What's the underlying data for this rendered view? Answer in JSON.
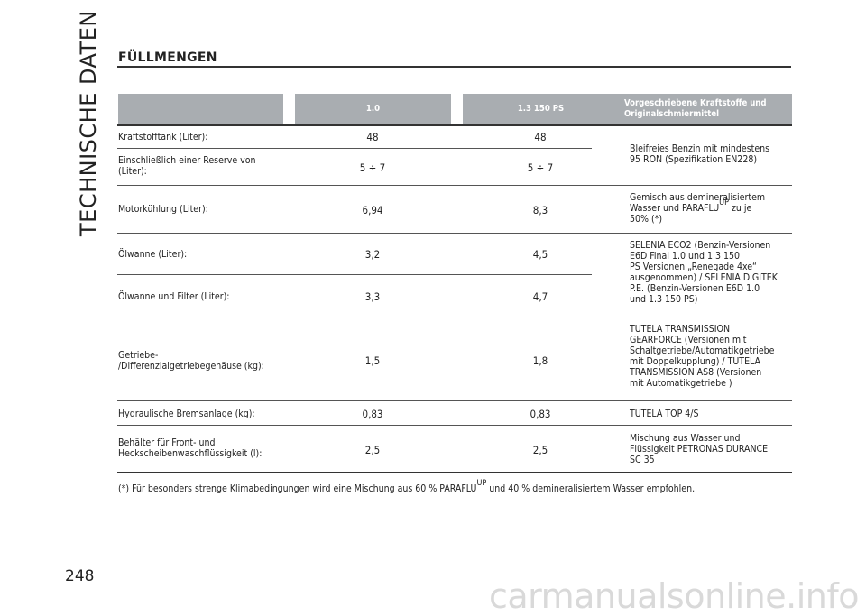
{
  "side_title": "TECHNISCHE DATEN",
  "page_number": "248",
  "heading": "FÜLLMENGEN",
  "table": {
    "header": {
      "col1": "",
      "col2": "1.0",
      "col3": "1.3 150 PS",
      "col4_line1": "Vorgeschriebene Kraftstoffe und",
      "col4_line2": "Originalschmiermittel"
    },
    "rows": [
      {
        "label_line1": "Kraftstofftank (Liter):",
        "label_line2": "",
        "v1": "48",
        "v2": "48"
      },
      {
        "label_line1": "Einschließlich einer Reserve von",
        "label_line2": "(Liter):",
        "v1": "5 ÷ 7",
        "v2": "5 ÷ 7"
      },
      {
        "label_line1": "Motorkühlung (Liter):",
        "label_line2": "",
        "v1": "6,94",
        "v2": "8,3"
      },
      {
        "label_line1": "Ölwanne (Liter):",
        "label_line2": "",
        "v1": "3,2",
        "v2": "4,5"
      },
      {
        "label_line1": "Ölwanne und Filter (Liter):",
        "label_line2": "",
        "v1": "3,3",
        "v2": "4,7"
      },
      {
        "label_line1": "Getriebe-",
        "label_line2": "/Differenzialgetriebegehäuse (kg):",
        "v1": "1,5",
        "v2": "1,8"
      },
      {
        "label_line1": "Hydraulische Bremsanlage (kg):",
        "label_line2": "",
        "v1": "0,83",
        "v2": "0,83"
      },
      {
        "label_line1": "Behälter für Front- und",
        "label_line2": "Heckscheibenwaschflüssigkeit (l):",
        "v1": "2,5",
        "v2": "2,5"
      }
    ],
    "specs": {
      "fuel": [
        "Bleifreies Benzin mit mindestens",
        "95 RON (Spezifikation EN228)"
      ],
      "coolant_line1": "Gemisch aus demineralisiertem",
      "coolant_line2_a": "Wasser und PARAFLU",
      "coolant_sup": "UP",
      "coolant_line2_b": "zu je",
      "coolant_line3": "50% (*)",
      "oil": [
        "SELENIA ECO2 (Benzin-Versionen",
        "E6D Final 1.0 und 1.3 150",
        "PS Versionen „Renegade 4xe“",
        "ausgenommen) / SELENIA DIGITEK",
        "P.E. (Benzin-Versionen E6D 1.0",
        "und 1.3 150 PS)"
      ],
      "transmission": [
        "TUTELA TRANSMISSION",
        "GEARFORCE (Versionen mit",
        "Schaltgetriebe/Automatikgetriebe",
        "mit Doppelkupplung) / TUTELA",
        "TRANSMISSION AS8 (Versionen",
        "mit Automatikgetriebe )"
      ],
      "brake": "TUTELA TOP 4/S",
      "washer": [
        "Mischung aus Wasser und",
        "Flüssigkeit PETRONAS DURANCE",
        "SC 35"
      ]
    }
  },
  "footnote": {
    "a": "(*) Für besonders strenge Klimabedingungen wird eine Mischung aus 60 % PARAFLU",
    "sup": "UP",
    "b": "und 40 % demineralisiertem Wasser empfohlen."
  },
  "watermark": "carmanualsonline.info"
}
